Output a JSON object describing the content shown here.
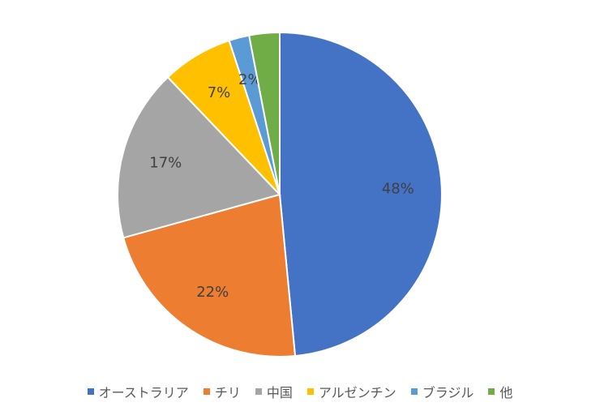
{
  "chart_data": {
    "type": "pie",
    "categories": [
      "オーストラリア",
      "チリ",
      "中国",
      "アルゼンチン",
      "ブラジル",
      "他"
    ],
    "values": [
      48,
      22,
      17,
      7,
      2,
      3
    ],
    "data_labels": [
      "48%",
      "22%",
      "17%",
      "7%",
      "2%",
      ""
    ],
    "colors": [
      "#4472C4",
      "#ED7D31",
      "#A5A5A5",
      "#FFC000",
      "#5B9BD5",
      "#70AD47"
    ],
    "legend_position": "bottom"
  }
}
